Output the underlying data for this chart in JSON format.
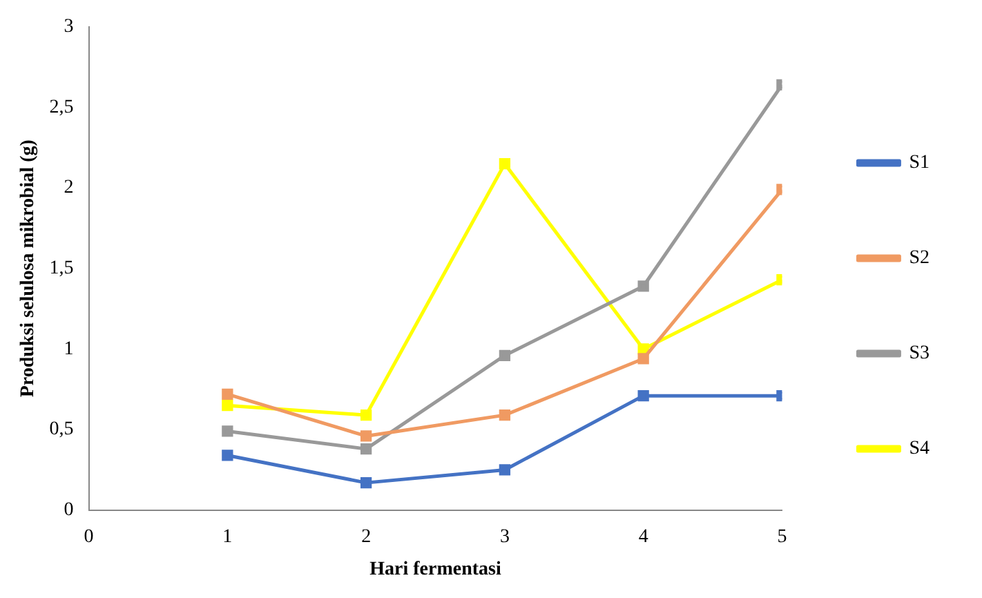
{
  "chart_data": {
    "type": "line",
    "xlabel": "Hari fermentasi",
    "ylabel": "Produksi selulosa mikrobial (g)",
    "x": [
      1,
      2,
      3,
      4,
      5
    ],
    "series": [
      {
        "name": "S1",
        "color": "#4472c4",
        "values": [
          0.34,
          0.17,
          0.25,
          0.71,
          0.71
        ]
      },
      {
        "name": "S2",
        "color": "#f09a62",
        "values": [
          0.72,
          0.46,
          0.59,
          0.94,
          1.99
        ]
      },
      {
        "name": "S3",
        "color": "#999999",
        "values": [
          0.49,
          0.38,
          0.96,
          1.39,
          2.64
        ]
      },
      {
        "name": "S4",
        "color": "#ffff00",
        "values": [
          0.65,
          0.59,
          2.15,
          1.0,
          1.43
        ]
      }
    ],
    "xlim": [
      0,
      5
    ],
    "xticks": [
      0,
      1,
      2,
      3,
      4,
      5
    ],
    "ylim": [
      0,
      3
    ],
    "yticks": [
      0,
      {
        "value": 0.5,
        "label": "0,5"
      },
      1,
      {
        "value": 1.5,
        "label": "1,5"
      },
      2,
      {
        "value": 2.5,
        "label": "2,5"
      },
      3
    ],
    "grid": false,
    "legend": "right",
    "marker": "square",
    "line_style": "solid"
  }
}
